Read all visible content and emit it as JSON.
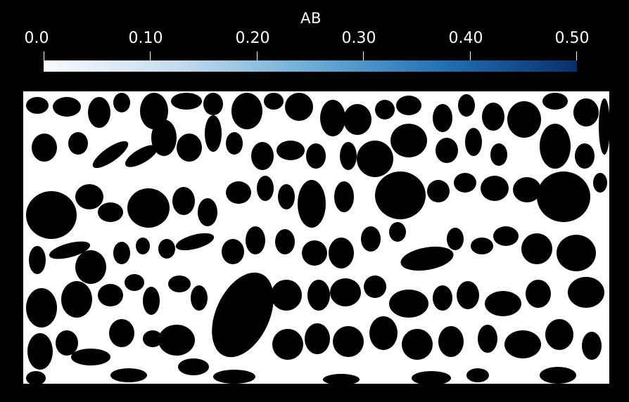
{
  "colorbar": {
    "title": "AB",
    "range": [
      0.0,
      0.5
    ],
    "ticks": [
      {
        "value": 0.0,
        "label": "0.0"
      },
      {
        "value": 0.1,
        "label": "0.10"
      },
      {
        "value": 0.2,
        "label": "0.20"
      },
      {
        "value": 0.3,
        "label": "0.30"
      },
      {
        "value": 0.4,
        "label": "0.40"
      },
      {
        "value": 0.5,
        "label": "0.50"
      }
    ],
    "colormap": [
      "#f7fbff",
      "#c6dbef",
      "#6baed6",
      "#2171b5",
      "#08306b"
    ]
  },
  "field": {
    "background_color": "#000000",
    "foreground_color": "#ffffff"
  }
}
